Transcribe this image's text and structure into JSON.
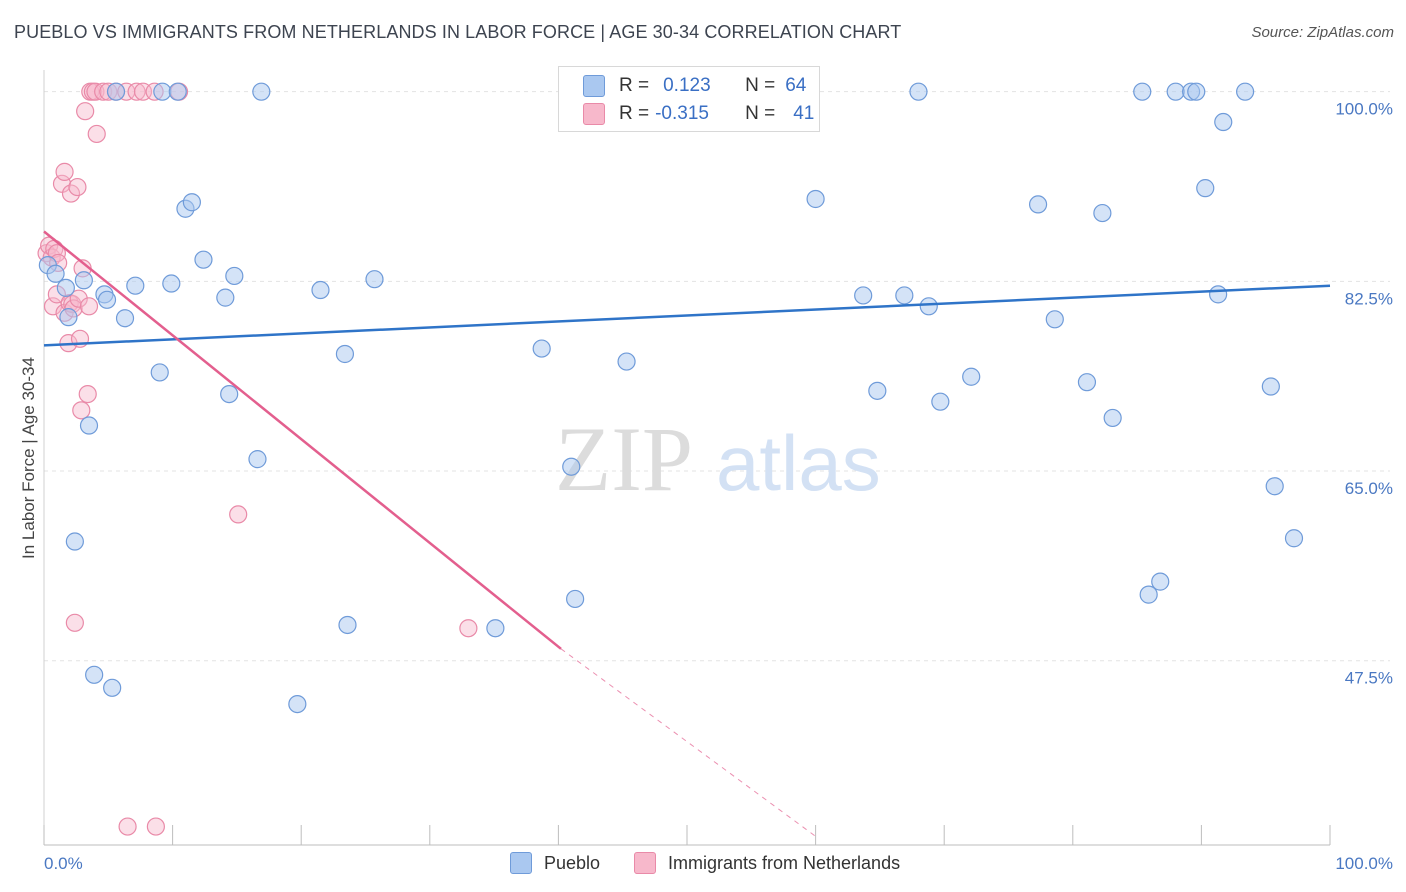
{
  "title": "PUEBLO VS IMMIGRANTS FROM NETHERLANDS IN LABOR FORCE | AGE 30-34 CORRELATION CHART",
  "source": "Source: ZipAtlas.com",
  "legend": {
    "series1": {
      "r_label": "R =",
      "r_value": "0.123",
      "n_label": "N =",
      "n_value": "64"
    },
    "series2": {
      "r_label": "R =",
      "r_value": "-0.315",
      "n_label": "N =",
      "n_value": "41"
    }
  },
  "bottom_legend": {
    "series1": "Pueblo",
    "series2": "Immigrants from Netherlands"
  },
  "colors": {
    "pueblo_fill": "#aac8f0",
    "pueblo_stroke": "#6f9bd9",
    "pueblo_line": "#2f74c8",
    "neth_fill": "#f7b8cb",
    "neth_stroke": "#e98aa8",
    "neth_line": "#e35f8e",
    "grid": "#e3e3e3",
    "tick_text": "#4a78c2"
  },
  "chart_data": {
    "type": "scatter",
    "title": "PUEBLO VS IMMIGRANTS FROM NETHERLANDS IN LABOR FORCE | AGE 30-34 CORRELATION CHART",
    "xlabel": "",
    "ylabel": "In Labor Force | Age 30-34",
    "xlim": [
      0,
      100
    ],
    "ylim": [
      30.5,
      102
    ],
    "x_tick_labels": [
      {
        "value": 0,
        "label": "0.0%"
      },
      {
        "value": 100,
        "label": "100.0%"
      }
    ],
    "y_tick_labels": [
      {
        "value": 100,
        "label": "100.0%"
      },
      {
        "value": 82.5,
        "label": "82.5%"
      },
      {
        "value": 65,
        "label": "65.0%"
      },
      {
        "value": 47.5,
        "label": "47.5%"
      }
    ],
    "grid": true,
    "legend_position": "top-center",
    "series": [
      {
        "name": "Pueblo",
        "trend": {
          "x": [
            0,
            100
          ],
          "y": [
            76.6,
            82.1
          ]
        },
        "points": [
          [
            0.3,
            84
          ],
          [
            0.9,
            83.2
          ],
          [
            1.7,
            81.9
          ],
          [
            1.9,
            79.2
          ],
          [
            2.4,
            58.5
          ],
          [
            3.1,
            82.6
          ],
          [
            3.5,
            69.2
          ],
          [
            3.9,
            46.2
          ],
          [
            4.7,
            81.3
          ],
          [
            4.9,
            80.8
          ],
          [
            5.3,
            45.0
          ],
          [
            5.6,
            100.0
          ],
          [
            6.3,
            79.1
          ],
          [
            7.1,
            82.1
          ],
          [
            9.0,
            74.1
          ],
          [
            9.2,
            100.0
          ],
          [
            9.9,
            82.3
          ],
          [
            10.4,
            100.0
          ],
          [
            11.0,
            89.2
          ],
          [
            11.5,
            89.8
          ],
          [
            12.4,
            84.5
          ],
          [
            14.1,
            81.0
          ],
          [
            14.4,
            72.1
          ],
          [
            14.8,
            83.0
          ],
          [
            16.6,
            66.1
          ],
          [
            16.9,
            100.0
          ],
          [
            19.7,
            43.5
          ],
          [
            21.5,
            81.7
          ],
          [
            23.4,
            75.8
          ],
          [
            23.6,
            50.8
          ],
          [
            25.7,
            82.7
          ],
          [
            35.1,
            50.5
          ],
          [
            38.7,
            76.3
          ],
          [
            41.0,
            65.4
          ],
          [
            41.3,
            53.2
          ],
          [
            42.2,
            100.0
          ],
          [
            45.3,
            75.1
          ],
          [
            59.4,
            100.0
          ],
          [
            60.0,
            90.1
          ],
          [
            63.7,
            81.2
          ],
          [
            64.8,
            72.4
          ],
          [
            66.9,
            81.2
          ],
          [
            68.0,
            100.0
          ],
          [
            68.8,
            80.2
          ],
          [
            69.7,
            71.4
          ],
          [
            72.1,
            73.7
          ],
          [
            77.3,
            89.6
          ],
          [
            78.6,
            79.0
          ],
          [
            81.1,
            73.2
          ],
          [
            82.3,
            88.8
          ],
          [
            83.1,
            69.9
          ],
          [
            85.4,
            100.0
          ],
          [
            85.9,
            53.6
          ],
          [
            86.8,
            54.8
          ],
          [
            88.0,
            100.0
          ],
          [
            89.2,
            100.0
          ],
          [
            89.6,
            100.0
          ],
          [
            90.3,
            91.1
          ],
          [
            91.3,
            81.3
          ],
          [
            91.7,
            97.2
          ],
          [
            93.4,
            100.0
          ],
          [
            95.4,
            72.8
          ],
          [
            95.7,
            63.6
          ],
          [
            97.2,
            58.8
          ]
        ]
      },
      {
        "name": "Immigrants from Netherlands",
        "trend": {
          "x": [
            0,
            40.2
          ],
          "y": [
            87.1,
            48.6
          ]
        },
        "trend_dashed": {
          "x": [
            40.2,
            60
          ],
          "y": [
            48.6,
            31.3
          ]
        },
        "points": [
          [
            0.2,
            85.1
          ],
          [
            0.4,
            85.8
          ],
          [
            0.6,
            84.7
          ],
          [
            0.8,
            85.5
          ],
          [
            1.0,
            85.1
          ],
          [
            1.1,
            84.2
          ],
          [
            0.7,
            80.2
          ],
          [
            1.0,
            81.3
          ],
          [
            1.4,
            91.5
          ],
          [
            1.6,
            92.6
          ],
          [
            1.6,
            79.6
          ],
          [
            1.9,
            76.8
          ],
          [
            2.0,
            80.5
          ],
          [
            2.1,
            90.6
          ],
          [
            2.2,
            80.4
          ],
          [
            2.3,
            80.0
          ],
          [
            2.4,
            51.0
          ],
          [
            2.6,
            91.2
          ],
          [
            2.7,
            80.9
          ],
          [
            2.8,
            77.2
          ],
          [
            2.9,
            70.6
          ],
          [
            3.0,
            83.7
          ],
          [
            3.2,
            98.2
          ],
          [
            3.4,
            72.1
          ],
          [
            3.5,
            80.2
          ],
          [
            3.6,
            100.0
          ],
          [
            3.8,
            100.0
          ],
          [
            4.0,
            100.0
          ],
          [
            4.1,
            96.1
          ],
          [
            4.6,
            100.0
          ],
          [
            5.0,
            100.0
          ],
          [
            5.6,
            100.0
          ],
          [
            6.4,
            100.0
          ],
          [
            6.5,
            32.2
          ],
          [
            7.2,
            100.0
          ],
          [
            7.7,
            100.0
          ],
          [
            8.6,
            100.0
          ],
          [
            8.7,
            32.2
          ],
          [
            10.5,
            100.0
          ],
          [
            15.1,
            61.0
          ],
          [
            33.0,
            50.5
          ]
        ]
      }
    ]
  }
}
